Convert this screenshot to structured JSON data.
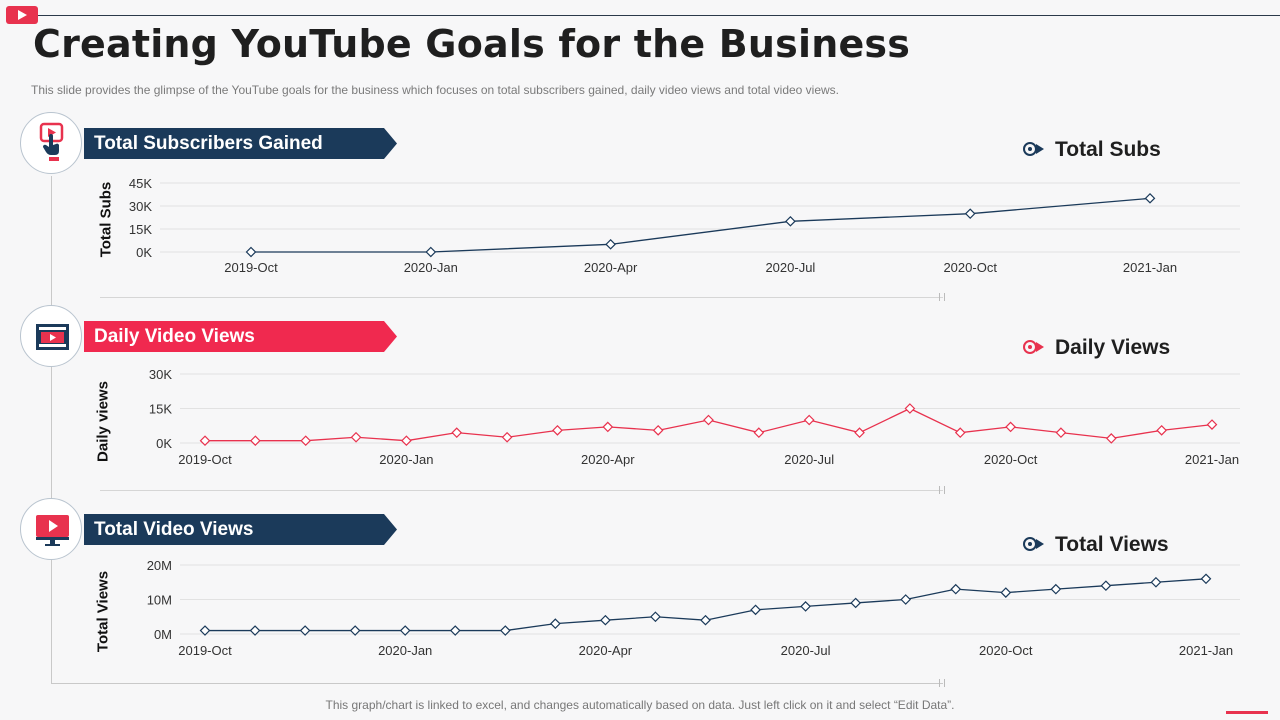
{
  "header": {
    "title": "Creating YouTube Goals for the Business",
    "subtitle": "This slide provides  the glimpse of the YouTube  goals for the business which focuses on total subscribers gained,  daily video  views  and total video views."
  },
  "footer": {
    "note": "This graph/chart is linked to excel,  and changes automatically based on data. Just left click on it and select “Edit Data”."
  },
  "colors": {
    "navy": "#1b3a5a",
    "red": "#f0294f",
    "grid": "#e2e2e2"
  },
  "sections": [
    {
      "banner": "Total Subscribers Gained",
      "icon": "subscribe-click-icon",
      "legend": "Total Subs",
      "ylabel": "Total Subs"
    },
    {
      "banner": "Daily Video Views",
      "icon": "video-film-icon",
      "legend": "Daily Views",
      "ylabel": "Daily views"
    },
    {
      "banner": "Total Video Views",
      "icon": "monitor-play-icon",
      "legend": "Total Views",
      "ylabel": "Total Views"
    }
  ],
  "chart_data": [
    {
      "type": "line",
      "series_name": "Total Subs",
      "ylabel": "Total Subs",
      "ylim": [
        0,
        45000
      ],
      "yticks": [
        0,
        15000,
        30000,
        45000
      ],
      "ytick_labels": [
        "0K",
        "15K",
        "30K",
        "45K"
      ],
      "x_labels": [
        "2019-Oct",
        "2020-Jan",
        "2020-Apr",
        "2020-Jul",
        "2020-Oct",
        "2021-Jan"
      ],
      "x": [
        "2019-Oct",
        "2020-Jan",
        "2020-Apr",
        "2020-Jul",
        "2020-Oct",
        "2021-Jan"
      ],
      "values": [
        0,
        0,
        5000,
        20000,
        25000,
        35000
      ],
      "color": "#1b3a5a"
    },
    {
      "type": "line",
      "series_name": "Daily Views",
      "ylabel": "Daily views",
      "ylim": [
        0,
        30000
      ],
      "yticks": [
        0,
        15000,
        30000
      ],
      "ytick_labels": [
        "0K",
        "15K",
        "30K"
      ],
      "x_labels": [
        "2019-Oct",
        "2020-Jan",
        "2020-Apr",
        "2020-Jul",
        "2020-Oct",
        "2021-Jan"
      ],
      "x": [
        "2019-Oct",
        "2019-Nov",
        "2019-Dec",
        "2020-Jan-a",
        "2020-Jan",
        "2020-Feb",
        "2020-Mar",
        "2020-Apr-a",
        "2020-Apr",
        "2020-May",
        "2020-Jun",
        "2020-Jun-b",
        "2020-Jul",
        "2020-Aug",
        "2020-Sep",
        "2020-Sep-b",
        "2020-Oct",
        "2020-Nov",
        "2020-Dec",
        "2020-Dec-b",
        "2021-Jan"
      ],
      "values": [
        1000,
        1000,
        1000,
        2500,
        1000,
        4500,
        2500,
        5500,
        7000,
        5500,
        10000,
        4500,
        10000,
        4500,
        15000,
        4500,
        7000,
        4500,
        2000,
        5500,
        8000
      ],
      "color": "#e8324e"
    },
    {
      "type": "line",
      "series_name": "Total Views",
      "ylabel": "Total Views",
      "ylim": [
        0,
        20000000
      ],
      "yticks": [
        0,
        10000000,
        20000000
      ],
      "ytick_labels": [
        "0M",
        "10M",
        "20M"
      ],
      "x_labels": [
        "2019-Oct",
        "2020-Jan",
        "2020-Apr",
        "2020-Jul",
        "2020-Oct",
        "2021-Jan"
      ],
      "x": [
        "2019-Oct",
        "2019-Nov",
        "2019-Dec",
        "2020-Jan-a",
        "2020-Jan",
        "2020-Feb",
        "2020-Mar",
        "2020-Apr-a",
        "2020-Apr",
        "2020-May",
        "2020-Jun",
        "2020-Jun-b",
        "2020-Jul",
        "2020-Aug",
        "2020-Sep",
        "2020-Sep-b",
        "2020-Oct",
        "2020-Nov",
        "2020-Dec",
        "2020-Dec-b",
        "2021-Jan"
      ],
      "values": [
        1000000,
        1000000,
        1000000,
        1000000,
        1000000,
        1000000,
        1000000,
        3000000,
        4000000,
        5000000,
        4000000,
        7000000,
        8000000,
        9000000,
        10000000,
        13000000,
        12000000,
        13000000,
        14000000,
        15000000,
        16000000
      ],
      "color": "#1b3a5a"
    }
  ]
}
